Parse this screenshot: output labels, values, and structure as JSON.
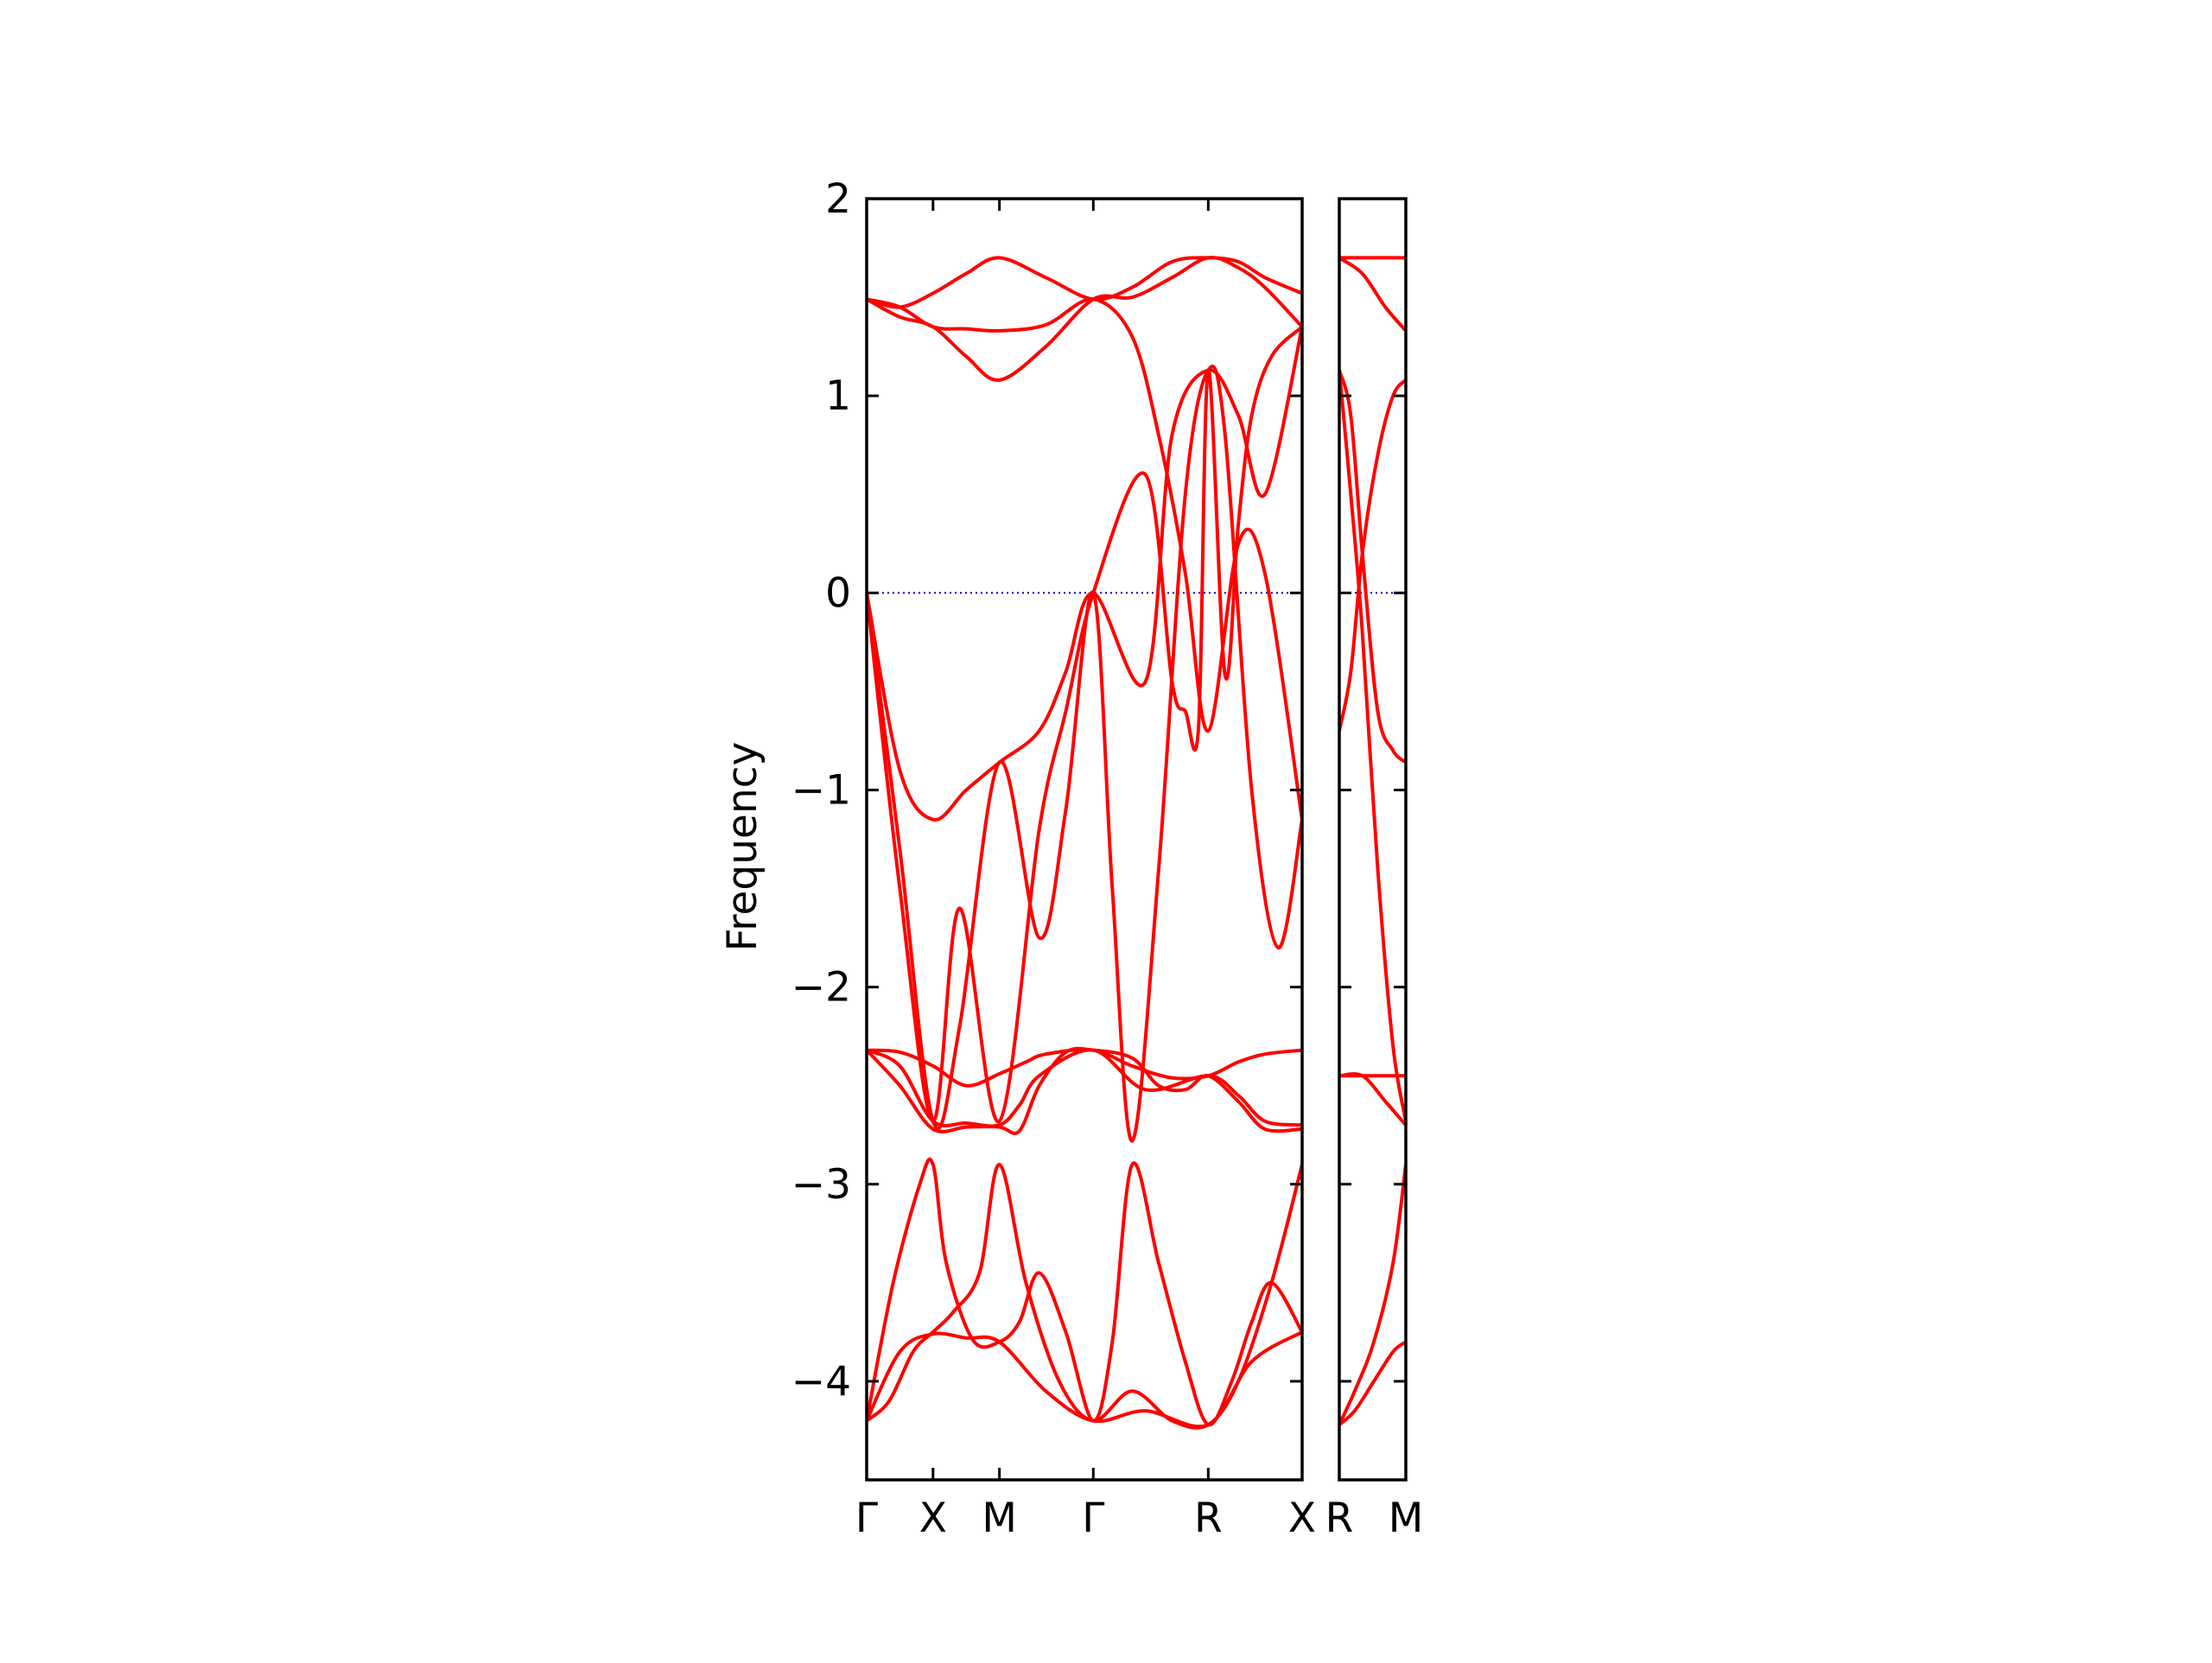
{
  "chart_data": {
    "type": "line",
    "title": "",
    "ylabel": "Frequency",
    "ylim": [
      -4.5,
      2
    ],
    "y_ticks": [
      {
        "value": 2,
        "label": "2"
      },
      {
        "value": 1,
        "label": "1"
      },
      {
        "value": 0,
        "label": "0"
      },
      {
        "value": -1,
        "label": "−1"
      },
      {
        "value": -2,
        "label": "−2"
      },
      {
        "value": -3,
        "label": "−3"
      },
      {
        "value": -4,
        "label": "−4"
      }
    ],
    "reference_line": {
      "y": 0,
      "color": "#0000cc",
      "style": "dotted"
    },
    "band_color": "#ff0000",
    "axis_color": "#000000",
    "panels": [
      {
        "name": "main-path",
        "path_labels": [
          "Γ",
          "X",
          "M",
          "Γ",
          "R",
          "X"
        ],
        "path_positions": [
          0,
          0.5,
          1.0,
          1.7071,
          2.5731,
          3.2802
        ],
        "bands": [
          {
            "x": [
              0,
              0.17,
              0.35,
              0.5,
              0.65,
              0.85,
              1.0,
              1.2,
              1.45,
              1.7071,
              2.0,
              2.3,
              2.5731,
              2.8,
              3.05,
              3.2802
            ],
            "y": [
              -4.2,
              -4.1,
              -3.85,
              -3.75,
              -3.65,
              -3.45,
              -2.9,
              -3.5,
              -4.0,
              -4.2,
              -4.05,
              -4.2,
              -4.22,
              -4.0,
              -3.5,
              -2.9
            ]
          },
          {
            "x": [
              0,
              0.2,
              0.4,
              0.5,
              0.6,
              0.8,
              1.0,
              1.15,
              1.3,
              1.5,
              1.7071,
              1.85,
              2.0,
              2.2,
              2.4,
              2.5731,
              2.75,
              2.9,
              3.05,
              3.2802
            ],
            "y": [
              -4.2,
              -3.5,
              -3.0,
              -2.9,
              -3.4,
              -3.79,
              -3.8,
              -3.7,
              -3.45,
              -3.75,
              -4.2,
              -3.8,
              -2.9,
              -3.4,
              -3.9,
              -4.22,
              -4.0,
              -3.7,
              -3.5,
              -3.75
            ]
          },
          {
            "x": [
              0,
              0.25,
              0.5,
              0.75,
              1.0,
              1.35,
              1.7071,
              2.1,
              2.5731,
              2.9,
              3.2802
            ],
            "y": [
              -4.2,
              -3.85,
              -3.76,
              -3.78,
              -3.8,
              -4.05,
              -4.2,
              -4.15,
              -4.22,
              -3.9,
              -3.75
            ]
          },
          {
            "x": [
              0,
              0.25,
              0.5,
              0.75,
              1.0,
              1.2,
              1.35,
              1.7071,
              2.0,
              2.3,
              2.5731,
              2.8,
              3.0,
              3.2802
            ],
            "y": [
              -2.32,
              -2.33,
              -2.4,
              -2.5,
              -2.44,
              -2.38,
              -2.34,
              -2.32,
              -2.4,
              -2.46,
              -2.45,
              -2.38,
              -2.34,
              -2.32
            ]
          },
          {
            "x": [
              0,
              0.25,
              0.5,
              0.75,
              1.0,
              1.15,
              1.3,
              1.7071,
              2.1,
              2.5731,
              2.8,
              3.0,
              3.2802
            ],
            "y": [
              -2.32,
              -2.4,
              -2.68,
              -2.69,
              -2.7,
              -2.6,
              -2.45,
              -2.32,
              -2.52,
              -2.45,
              -2.55,
              -2.68,
              -2.7
            ]
          },
          {
            "x": [
              0,
              0.25,
              0.5,
              0.75,
              1.0,
              1.15,
              1.3,
              1.5,
              1.7071,
              2.0,
              2.2,
              2.4,
              2.5731,
              2.8,
              3.0,
              3.2802
            ],
            "y": [
              -2.32,
              -2.5,
              -2.72,
              -2.71,
              -2.71,
              -2.73,
              -2.5,
              -2.33,
              -2.32,
              -2.36,
              -2.5,
              -2.52,
              -2.45,
              -2.58,
              -2.72,
              -2.72
            ]
          },
          {
            "x": [
              0,
              0.25,
              0.5,
              0.75,
              1.0,
              1.3,
              1.5,
              1.7071,
              2.1,
              2.3,
              2.5731,
              2.8,
              3.0,
              3.2802
            ],
            "y": [
              0,
              -0.9,
              -1.15,
              -1.0,
              -0.86,
              -0.7,
              -0.4,
              0,
              -0.45,
              0.8,
              1.13,
              0.9,
              0.5,
              1.35
            ]
          },
          {
            "x": [
              0,
              0.25,
              0.5,
              0.7,
              1.0,
              1.3,
              1.5,
              1.7071,
              1.85,
              2.0,
              2.2,
              2.4,
              2.5731,
              2.7,
              2.9,
              3.1,
              3.2802
            ],
            "y": [
              0,
              -1.3,
              -2.68,
              -2.2,
              -0.86,
              -1.75,
              -1.1,
              0,
              -1.5,
              -2.78,
              -1.4,
              0.5,
              1.13,
              0.8,
              -1.0,
              -1.8,
              -1.15
            ]
          },
          {
            "x": [
              0,
              0.25,
              0.5,
              0.7,
              1.0,
              1.3,
              1.5,
              1.7071,
              2.1,
              2.3,
              2.4,
              2.5,
              2.5731,
              2.7,
              2.8,
              2.9,
              3.05,
              3.2802
            ],
            "y": [
              0,
              -1.5,
              -2.68,
              -1.6,
              -2.68,
              -1.2,
              -0.6,
              0,
              0.6,
              -0.45,
              -0.6,
              -0.68,
              1.13,
              -0.42,
              0.35,
              0.9,
              1.2,
              1.35
            ]
          },
          {
            "x": [
              0,
              0.25,
              0.5,
              0.75,
              1.0,
              1.35,
              1.7071,
              2.0,
              2.2,
              2.4,
              2.5731,
              2.8,
              3.0,
              3.2802
            ],
            "y": [
              1.49,
              1.45,
              1.35,
              1.34,
              1.33,
              1.36,
              1.49,
              1.3,
              0.8,
              0.1,
              -0.7,
              0.25,
              0.1,
              -1.15
            ]
          },
          {
            "x": [
              0,
              0.25,
              0.5,
              0.75,
              1.0,
              1.35,
              1.7071,
              2.0,
              2.3,
              2.5731,
              2.8,
              3.0,
              3.2802
            ],
            "y": [
              1.49,
              1.4,
              1.35,
              1.2,
              1.08,
              1.25,
              1.49,
              1.5,
              1.6,
              1.7,
              1.65,
              1.55,
              1.35
            ]
          },
          {
            "x": [
              0,
              0.25,
              0.5,
              0.75,
              1.0,
              1.35,
              1.7071,
              2.0,
              2.3,
              2.5731,
              2.8,
              3.0,
              3.2802
            ],
            "y": [
              1.49,
              1.45,
              1.52,
              1.62,
              1.7,
              1.6,
              1.49,
              1.55,
              1.68,
              1.7,
              1.68,
              1.6,
              1.52
            ]
          }
        ]
      },
      {
        "name": "side-path",
        "path_labels": [
          "R",
          "M"
        ],
        "path_positions": [
          0,
          0.866
        ],
        "bands": [
          {
            "x": [
              0,
              0.2,
              0.45,
              0.7,
              0.866
            ],
            "y": [
              -4.22,
              -4.15,
              -4.0,
              -3.85,
              -3.8
            ]
          },
          {
            "x": [
              0,
              0.2,
              0.45,
              0.7,
              0.866
            ],
            "y": [
              -4.22,
              -4.05,
              -3.8,
              -3.4,
              -2.9
            ]
          },
          {
            "x": [
              0,
              0.3,
              0.6,
              0.866
            ],
            "y": [
              -2.45,
              -2.45,
              -2.45,
              -2.45
            ]
          },
          {
            "x": [
              0,
              0.3,
              0.6,
              0.866
            ],
            "y": [
              -2.45,
              -2.45,
              -2.58,
              -2.7
            ]
          },
          {
            "x": [
              0,
              0.15,
              0.3,
              0.5,
              0.7,
              0.866
            ],
            "y": [
              1.13,
              0.5,
              -0.2,
              -1.4,
              -2.3,
              -2.68
            ]
          },
          {
            "x": [
              0,
              0.15,
              0.3,
              0.5,
              0.7,
              0.866
            ],
            "y": [
              1.13,
              0.9,
              0.2,
              -0.6,
              -0.8,
              -0.86
            ]
          },
          {
            "x": [
              0,
              0.15,
              0.3,
              0.5,
              0.7,
              0.866
            ],
            "y": [
              -0.7,
              -0.4,
              0.2,
              0.7,
              1.0,
              1.08
            ]
          },
          {
            "x": [
              0,
              0.3,
              0.6,
              0.866
            ],
            "y": [
              1.7,
              1.7,
              1.7,
              1.7
            ]
          },
          {
            "x": [
              0,
              0.3,
              0.6,
              0.866
            ],
            "y": [
              1.7,
              1.62,
              1.45,
              1.33
            ]
          }
        ]
      }
    ]
  }
}
